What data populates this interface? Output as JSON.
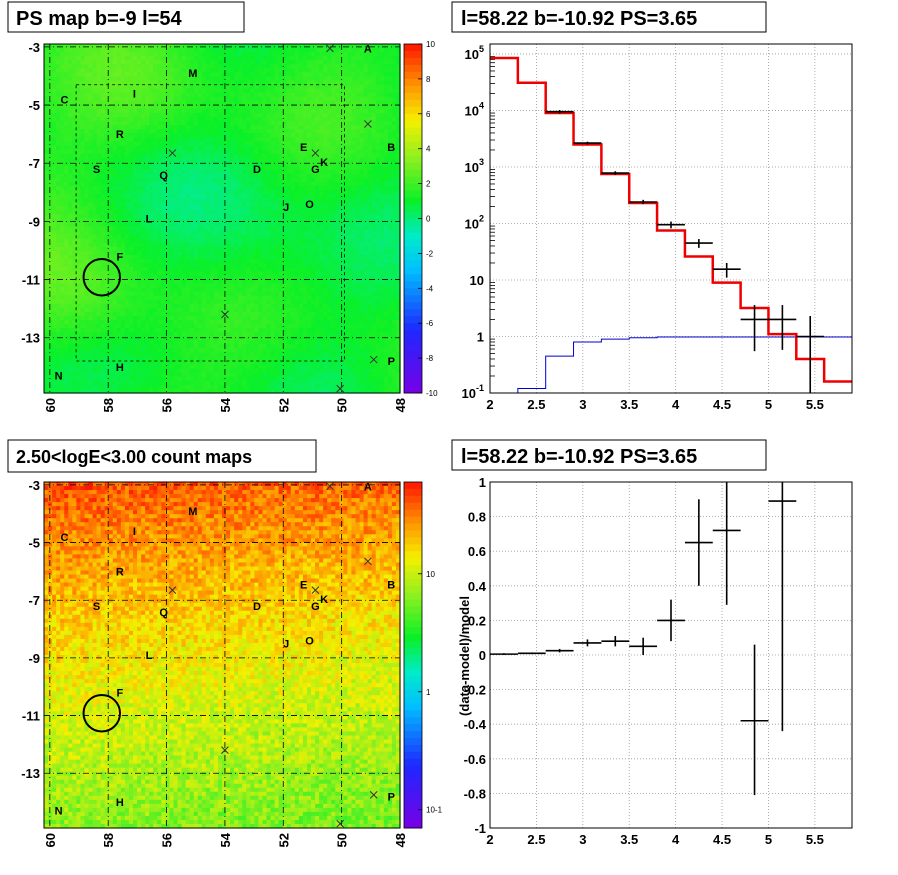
{
  "chart_data": [
    {
      "type": "heatmap",
      "title": "PS map b=-9 l=54",
      "x_ticks": [
        "60",
        "58",
        "56",
        "54",
        "52",
        "50",
        "48"
      ],
      "x_tick_values": [
        60,
        58,
        56,
        54,
        52,
        50,
        48
      ],
      "y_ticks": [
        "-3",
        "-5",
        "-7",
        "-9",
        "-11",
        "-13"
      ],
      "y_tick_values": [
        -3,
        -5,
        -7,
        -9,
        -11,
        -13
      ],
      "xlim": [
        60.2,
        48.0
      ],
      "ylim": [
        -14.9,
        -2.9
      ],
      "palette_ticks": [
        "10",
        "8",
        "6",
        "4",
        "2",
        "0",
        "-2",
        "-4",
        "-6",
        "-8",
        "-10"
      ],
      "palette_tick_values": [
        10,
        8,
        6,
        4,
        2,
        0,
        -2,
        -4,
        -6,
        -8,
        -10
      ],
      "zlim": [
        -10,
        10
      ],
      "grid": true,
      "circle": {
        "l": 58.22,
        "b": -10.92,
        "r": 0.5
      },
      "source_labels": [
        {
          "t": "A",
          "l": 49.1,
          "b": -3.05
        },
        {
          "t": "M",
          "l": 55.1,
          "b": -3.9
        },
        {
          "t": "I",
          "l": 57.1,
          "b": -4.6
        },
        {
          "t": "C",
          "l": 59.5,
          "b": -4.8
        },
        {
          "t": "R",
          "l": 57.6,
          "b": -6.0
        },
        {
          "t": "B",
          "l": 48.3,
          "b": -6.45
        },
        {
          "t": "E",
          "l": 51.3,
          "b": -6.45
        },
        {
          "t": "K",
          "l": 50.6,
          "b": -6.95
        },
        {
          "t": "S",
          "l": 58.4,
          "b": -7.2
        },
        {
          "t": "Q",
          "l": 56.1,
          "b": -7.4
        },
        {
          "t": "D",
          "l": 52.9,
          "b": -7.2
        },
        {
          "t": "G",
          "l": 50.9,
          "b": -7.2
        },
        {
          "t": "J",
          "l": 51.9,
          "b": -8.5
        },
        {
          "t": "O",
          "l": 51.1,
          "b": -8.4
        },
        {
          "t": "L",
          "l": 56.6,
          "b": -8.9
        },
        {
          "t": "F",
          "l": 57.6,
          "b": -10.2
        },
        {
          "t": "P",
          "l": 48.3,
          "b": -13.8
        },
        {
          "t": "H",
          "l": 57.6,
          "b": -14.0
        },
        {
          "t": "N",
          "l": 59.7,
          "b": -14.3
        }
      ],
      "crosses": [
        {
          "l": 50.4,
          "b": -3.05
        },
        {
          "l": 49.1,
          "b": -5.65
        },
        {
          "l": 55.8,
          "b": -6.65
        },
        {
          "l": 50.9,
          "b": -6.65
        },
        {
          "l": 54.0,
          "b": -12.2
        },
        {
          "l": 48.9,
          "b": -13.75
        },
        {
          "l": 50.05,
          "b": -14.75
        }
      ]
    },
    {
      "type": "line",
      "title": "l=58.22 b=-10.92 PS=3.65",
      "xlim": [
        2.0,
        5.9
      ],
      "ylim": [
        0.1,
        150000
      ],
      "log_y": true,
      "grid": true,
      "x_ticks": [
        "2",
        "2.5",
        "3",
        "3.5",
        "4",
        "4.5",
        "5",
        "5.5"
      ],
      "x_tick_values": [
        2,
        2.5,
        3,
        3.5,
        4,
        4.5,
        5,
        5.5
      ],
      "y_ticks": [
        "10",
        "10",
        "10",
        "10",
        "10",
        "10",
        "1"
      ],
      "y_tick_exponents": [
        "-1",
        "",
        "",
        "2",
        "3",
        "4",
        "5"
      ],
      "y_tick_values": [
        0.1,
        1,
        10,
        100,
        1000,
        10000,
        100000
      ],
      "series": [
        {
          "x": [
            2.15,
            2.45,
            2.75,
            3.05,
            3.35,
            3.65,
            3.95,
            4.25,
            4.55,
            4.85,
            5.15,
            5.45,
            5.75
          ],
          "values": [
            85000,
            31000,
            9000,
            2500,
            750,
            230,
            75,
            26,
            9,
            3.2,
            1.1,
            0.4,
            0.16
          ]
        },
        {
          "x": [
            2.15,
            2.45,
            2.75,
            3.05,
            3.35,
            3.65,
            3.95,
            4.25,
            4.55,
            4.85,
            5.15,
            5.45,
            5.75
          ],
          "values": [
            0.1,
            0.12,
            0.45,
            0.8,
            0.9,
            0.95,
            0.98,
            0.98,
            0.98,
            0.98,
            0.98,
            0.98,
            0.98
          ]
        }
      ],
      "points": [
        {
          "x": 2.75,
          "y": 9500,
          "lo": 8800,
          "hi": 10200
        },
        {
          "x": 3.05,
          "y": 2650,
          "lo": 2500,
          "hi": 2800
        },
        {
          "x": 3.35,
          "y": 780,
          "lo": 720,
          "hi": 840
        },
        {
          "x": 3.65,
          "y": 240,
          "lo": 220,
          "hi": 262
        },
        {
          "x": 3.95,
          "y": 95,
          "lo": 82,
          "hi": 108
        },
        {
          "x": 4.25,
          "y": 45,
          "lo": 37,
          "hi": 53
        },
        {
          "x": 4.55,
          "y": 15.5,
          "lo": 11,
          "hi": 20
        },
        {
          "x": 4.85,
          "y": 2,
          "lo": 0.55,
          "hi": 3.6
        },
        {
          "x": 5.15,
          "y": 2,
          "lo": 0.58,
          "hi": 3.6
        },
        {
          "x": 5.45,
          "y": 1,
          "lo": 0.1,
          "hi": 2.3
        }
      ]
    },
    {
      "type": "heatmap",
      "title": "2.50<logE<3.00 count maps",
      "x_ticks": [
        "60",
        "58",
        "56",
        "54",
        "52",
        "50",
        "48"
      ],
      "x_tick_values": [
        60,
        58,
        56,
        54,
        52,
        50,
        48
      ],
      "y_ticks": [
        "-3",
        "-5",
        "-7",
        "-9",
        "-11",
        "-13"
      ],
      "y_tick_values": [
        -3,
        -5,
        -7,
        -9,
        -11,
        -13
      ],
      "xlim": [
        60.2,
        48.0
      ],
      "ylim": [
        -14.9,
        -2.9
      ],
      "palette_ticks": [
        "10",
        "1",
        "10"
      ],
      "palette_tick_exponent": "-1",
      "palette_tick_values": [
        10,
        1,
        0.1
      ],
      "zlim": [
        0.07,
        60
      ],
      "log_z": true,
      "grid": true,
      "circle": {
        "l": 58.22,
        "b": -10.92,
        "r": 0.5
      }
    },
    {
      "type": "scatter",
      "title": "l=58.22 b=-10.92 PS=3.65",
      "ylabel": "(data-model)/model",
      "xlim": [
        2.0,
        5.9
      ],
      "ylim": [
        -1.0,
        1.0
      ],
      "grid": true,
      "x_ticks": [
        "2",
        "2.5",
        "3",
        "3.5",
        "4",
        "4.5",
        "5",
        "5.5"
      ],
      "x_tick_values": [
        2,
        2.5,
        3,
        3.5,
        4,
        4.5,
        5,
        5.5
      ],
      "y_ticks": [
        "1",
        "0.8",
        "0.6",
        "0.4",
        "0.2",
        "0",
        "-0.2",
        "-0.4",
        "-0.6",
        "-0.8",
        "-1"
      ],
      "y_tick_values": [
        1,
        0.8,
        0.6,
        0.4,
        0.2,
        0,
        -0.2,
        -0.4,
        -0.6,
        -0.8,
        -1
      ],
      "points": [
        {
          "x": 2.15,
          "y": 0.005,
          "lo": 0.0,
          "hi": 0.01
        },
        {
          "x": 2.45,
          "y": 0.01,
          "lo": 0.005,
          "hi": 0.015
        },
        {
          "x": 2.75,
          "y": 0.025,
          "lo": 0.015,
          "hi": 0.035
        },
        {
          "x": 3.05,
          "y": 0.07,
          "lo": 0.05,
          "hi": 0.09
        },
        {
          "x": 3.35,
          "y": 0.08,
          "lo": 0.05,
          "hi": 0.11
        },
        {
          "x": 3.65,
          "y": 0.05,
          "lo": 0.0,
          "hi": 0.1
        },
        {
          "x": 3.95,
          "y": 0.2,
          "lo": 0.08,
          "hi": 0.32
        },
        {
          "x": 4.25,
          "y": 0.65,
          "lo": 0.4,
          "hi": 0.9
        },
        {
          "x": 4.55,
          "y": 0.72,
          "lo": 0.29,
          "hi": 1.0
        },
        {
          "x": 4.85,
          "y": -0.38,
          "lo": -0.81,
          "hi": 0.06
        },
        {
          "x": 5.15,
          "y": 0.89,
          "lo": -0.44,
          "hi": 1.0
        }
      ]
    }
  ]
}
